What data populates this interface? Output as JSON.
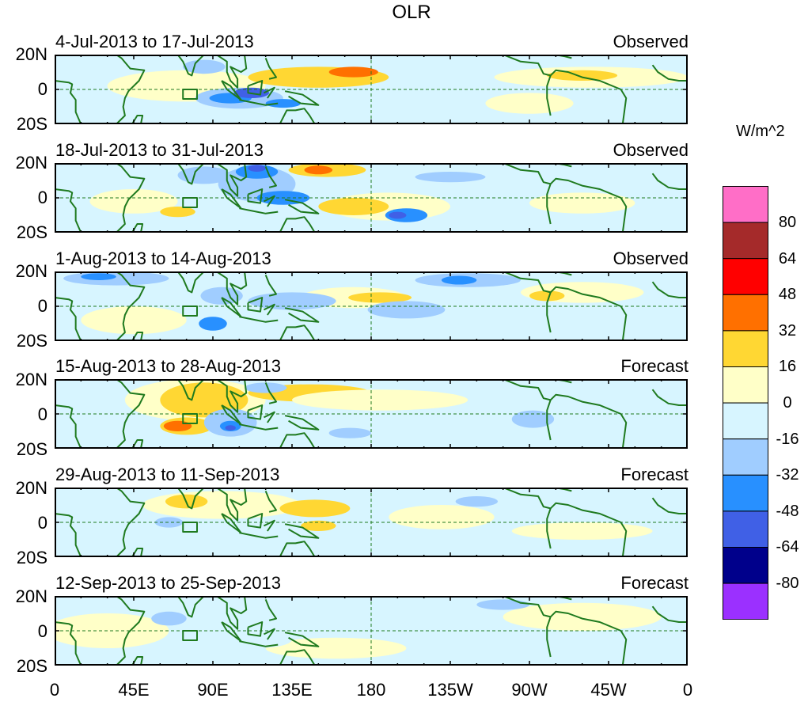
{
  "title": "OLR",
  "units_label": "W/m^2",
  "chart_data": {
    "type": "heatmap",
    "variable": "OLR anomaly",
    "units": "W/m^2",
    "x_ticks": [
      "0",
      "45E",
      "90E",
      "135E",
      "180",
      "135W",
      "90W",
      "45W",
      "0"
    ],
    "y_ticks": [
      "20N",
      "0",
      "20S"
    ],
    "colorbar": {
      "levels": [
        "80",
        "64",
        "48",
        "32",
        "16",
        "0",
        "-16",
        "-32",
        "-48",
        "-64",
        "-80"
      ],
      "colors": [
        "#ff6ec7",
        "#a52a2a",
        "#ff0000",
        "#ff7000",
        "#ffd733",
        "#ffffc8",
        "#d7f5ff",
        "#a0cdff",
        "#2890ff",
        "#4060e6",
        "#00008b",
        "#9b30ff"
      ]
    },
    "panels": [
      {
        "title": "4-Jul-2013 to 17-Jul-2013",
        "type": "Observed"
      },
      {
        "title": "18-Jul-2013 to 31-Jul-2013",
        "type": "Observed"
      },
      {
        "title": "1-Aug-2013 to 14-Aug-2013",
        "type": "Observed"
      },
      {
        "title": "15-Aug-2013 to 28-Aug-2013",
        "type": "Forecast"
      },
      {
        "title": "29-Aug-2013 to 11-Sep-2013",
        "type": "Forecast"
      },
      {
        "title": "12-Sep-2013 to 25-Sep-2013",
        "type": "Forecast"
      }
    ]
  }
}
